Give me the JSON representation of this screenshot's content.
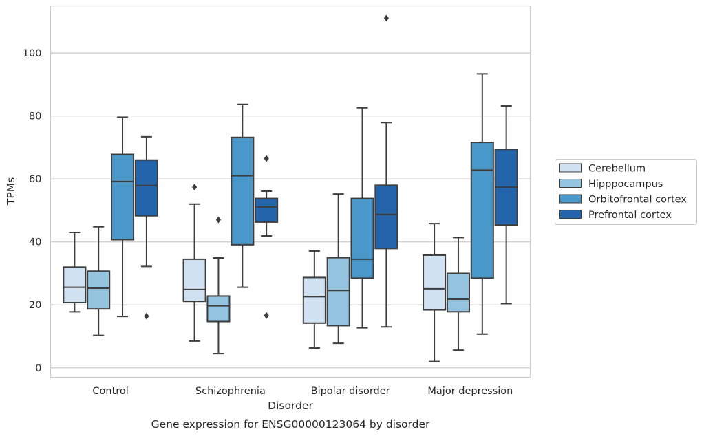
{
  "chart_data": {
    "type": "box",
    "title": "",
    "caption": "Gene expression for ENSG00000123064 by disorder",
    "xlabel": "Disorder",
    "ylabel": "TPMs",
    "ylim": [
      -3,
      115
    ],
    "yticks": [
      0,
      20,
      40,
      60,
      80,
      100
    ],
    "grid": "horizontal",
    "legend_position": "right",
    "categories": [
      "Control",
      "Schizophrenia",
      "Bipolar disorder",
      "Major depression"
    ],
    "series": [
      {
        "name": "Cerebellum",
        "color": "#d0e1f2",
        "boxes": [
          {
            "whisker_low": 17.8,
            "q1": 20.7,
            "median": 25.6,
            "q3": 32.0,
            "whisker_high": 43.0,
            "outliers": []
          },
          {
            "whisker_low": 8.5,
            "q1": 21.1,
            "median": 24.9,
            "q3": 34.5,
            "whisker_high": 52.0,
            "outliers": [
              57.4
            ]
          },
          {
            "whisker_low": 6.3,
            "q1": 14.2,
            "median": 22.6,
            "q3": 28.7,
            "whisker_high": 37.1,
            "outliers": []
          },
          {
            "whisker_low": 2.0,
            "q1": 18.4,
            "median": 25.1,
            "q3": 35.8,
            "whisker_high": 45.8,
            "outliers": []
          }
        ]
      },
      {
        "name": "Hipppocampus",
        "color": "#94c4df",
        "boxes": [
          {
            "whisker_low": 10.3,
            "q1": 18.7,
            "median": 25.3,
            "q3": 30.7,
            "whisker_high": 44.8,
            "outliers": []
          },
          {
            "whisker_low": 4.5,
            "q1": 14.7,
            "median": 19.7,
            "q3": 22.8,
            "whisker_high": 34.9,
            "outliers": [
              47.0
            ]
          },
          {
            "whisker_low": 7.8,
            "q1": 13.4,
            "median": 24.6,
            "q3": 35.0,
            "whisker_high": 55.2,
            "outliers": []
          },
          {
            "whisker_low": 5.6,
            "q1": 17.8,
            "median": 21.8,
            "q3": 30.0,
            "whisker_high": 41.4,
            "outliers": []
          }
        ]
      },
      {
        "name": "Orbitofrontal cortex",
        "color": "#4a98c9",
        "boxes": [
          {
            "whisker_low": 16.3,
            "q1": 40.7,
            "median": 59.2,
            "q3": 67.8,
            "whisker_high": 79.6,
            "outliers": []
          },
          {
            "whisker_low": 25.6,
            "q1": 39.1,
            "median": 61.0,
            "q3": 73.2,
            "whisker_high": 83.7,
            "outliers": []
          },
          {
            "whisker_low": 12.7,
            "q1": 28.5,
            "median": 34.5,
            "q3": 53.8,
            "whisker_high": 82.6,
            "outliers": []
          },
          {
            "whisker_low": 10.7,
            "q1": 28.5,
            "median": 62.8,
            "q3": 71.6,
            "whisker_high": 93.4,
            "outliers": []
          }
        ]
      },
      {
        "name": "Prefrontal cortex",
        "color": "#2364aa",
        "boxes": [
          {
            "whisker_low": 32.2,
            "q1": 48.3,
            "median": 57.9,
            "q3": 66.0,
            "whisker_high": 73.4,
            "outliers": [
              16.4
            ]
          },
          {
            "whisker_low": 41.9,
            "q1": 46.3,
            "median": 51.1,
            "q3": 53.8,
            "whisker_high": 56.1,
            "outliers": [
              66.5,
              16.6
            ]
          },
          {
            "whisker_low": 13.0,
            "q1": 37.9,
            "median": 48.7,
            "q3": 58.0,
            "whisker_high": 77.9,
            "outliers": [
              111.1
            ]
          },
          {
            "whisker_low": 20.4,
            "q1": 45.4,
            "median": 57.4,
            "q3": 69.4,
            "whisker_high": 83.2,
            "outliers": []
          }
        ]
      }
    ]
  }
}
